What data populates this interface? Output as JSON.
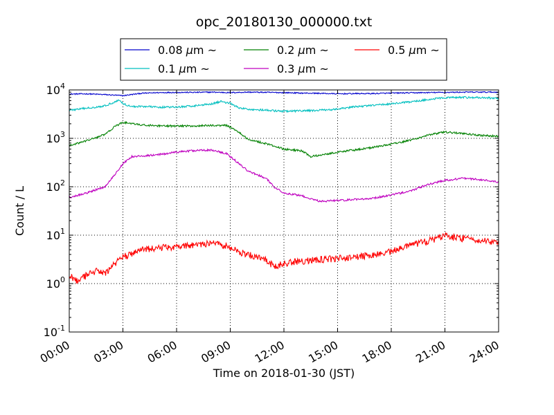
{
  "chart_data": {
    "type": "line",
    "title": "opc_20180130_000000.txt",
    "xlabel": "Time on 2018-01-30 (JST)",
    "ylabel": "Count / L",
    "yscale": "log",
    "xlim": [
      0,
      24
    ],
    "ylim": [
      0.1,
      10000
    ],
    "grid": true,
    "legend_position": "top",
    "x_ticks": [
      0,
      3,
      6,
      9,
      12,
      15,
      18,
      21,
      24
    ],
    "x_tick_labels": [
      "00:00",
      "03:00",
      "06:00",
      "09:00",
      "12:00",
      "15:00",
      "18:00",
      "21:00",
      "24:00"
    ],
    "y_ticks": [
      {
        "value": 0.1,
        "base": "10",
        "exp": "-1"
      },
      {
        "value": 1,
        "base": "10",
        "exp": "0"
      },
      {
        "value": 10,
        "base": "10",
        "exp": "1"
      },
      {
        "value": 100,
        "base": "10",
        "exp": "2"
      },
      {
        "value": 1000,
        "base": "10",
        "exp": "3"
      },
      {
        "value": 10000,
        "base": "10",
        "exp": "4"
      }
    ],
    "series": [
      {
        "name": "0.08 μm ~",
        "legend_prefix": "0.08 ",
        "legend_mu": "μ",
        "legend_suffix": "m  ~",
        "color": "#0000cc",
        "noise": 0.012,
        "x": [
          0,
          1,
          2,
          3,
          4,
          5,
          6,
          7,
          8,
          9,
          10,
          11,
          12,
          13,
          14,
          15,
          16,
          17,
          18,
          19,
          20,
          21,
          22,
          23,
          24
        ],
        "y": [
          8200,
          8300,
          8000,
          7600,
          8500,
          8800,
          8900,
          8900,
          9000,
          8800,
          9000,
          8900,
          8800,
          8600,
          8500,
          8300,
          8400,
          8400,
          8600,
          8700,
          8800,
          8900,
          9000,
          9000,
          9000
        ]
      },
      {
        "name": "0.1 μm ~",
        "legend_prefix": "0.1 ",
        "legend_mu": "μ",
        "legend_suffix": "m  ~",
        "color": "#00bfbf",
        "noise": 0.02,
        "x": [
          0,
          1,
          2,
          2.8,
          3,
          3.5,
          4,
          5,
          6,
          7,
          8,
          8.5,
          9,
          9.5,
          10,
          11,
          12,
          13,
          14,
          15,
          16,
          17,
          18,
          19,
          20,
          21,
          22,
          23,
          24
        ],
        "y": [
          3800,
          4200,
          4700,
          6200,
          5200,
          4500,
          4600,
          4400,
          4400,
          4700,
          5200,
          5800,
          5300,
          4200,
          4000,
          3800,
          3600,
          3700,
          3800,
          4000,
          4500,
          4800,
          5200,
          5600,
          6300,
          6900,
          7000,
          6900,
          6700
        ]
      },
      {
        "name": "0.2 μm ~",
        "legend_prefix": "0.2 ",
        "legend_mu": "μ",
        "legend_suffix": "m  ~",
        "color": "#008000",
        "noise": 0.02,
        "x": [
          0,
          1,
          2,
          2.5,
          3,
          3.5,
          4,
          5,
          6,
          7,
          8,
          8.8,
          9.3,
          10,
          11,
          12,
          13,
          13.5,
          14,
          15,
          16,
          17,
          18,
          19,
          20,
          21,
          22,
          23,
          24
        ],
        "y": [
          700,
          900,
          1200,
          1700,
          2150,
          2000,
          1900,
          1800,
          1800,
          1800,
          1850,
          1850,
          1500,
          950,
          780,
          600,
          550,
          420,
          450,
          520,
          580,
          650,
          760,
          900,
          1150,
          1350,
          1250,
          1150,
          1100
        ]
      },
      {
        "name": "0.3 μm ~",
        "legend_prefix": "0.3 ",
        "legend_mu": "μ",
        "legend_suffix": "m  ~",
        "color": "#bf00bf",
        "noise": 0.02,
        "x": [
          0,
          1,
          2,
          2.5,
          3,
          3.5,
          4,
          5,
          6,
          7,
          8,
          8.8,
          9.5,
          10,
          11,
          11.5,
          12,
          13,
          14,
          15,
          16,
          17,
          18,
          19,
          20,
          21,
          22,
          23,
          24
        ],
        "y": [
          60,
          75,
          100,
          170,
          300,
          420,
          430,
          460,
          520,
          560,
          570,
          480,
          300,
          210,
          150,
          95,
          75,
          65,
          50,
          52,
          55,
          58,
          68,
          80,
          110,
          135,
          150,
          140,
          125
        ]
      },
      {
        "name": "0.5 μm ~",
        "legend_prefix": "0.5 ",
        "legend_mu": "μ",
        "legend_suffix": "m  ~",
        "color": "#ff0000",
        "noise": 0.07,
        "x": [
          0,
          0.5,
          1,
          1.5,
          2,
          2.5,
          3,
          4,
          5,
          6,
          7,
          8,
          8.8,
          9.5,
          10,
          11,
          11.5,
          12,
          13,
          14,
          15,
          16,
          17,
          18,
          19,
          20,
          21,
          22,
          23,
          24
        ],
        "y": [
          1.5,
          1.1,
          1.5,
          1.8,
          1.6,
          2.5,
          3.5,
          5.0,
          5.5,
          5.8,
          6.3,
          6.8,
          6.0,
          4.5,
          4.0,
          3.0,
          2.2,
          2.6,
          2.9,
          3.1,
          3.3,
          3.5,
          3.9,
          4.6,
          6.0,
          7.5,
          9.5,
          8.5,
          7.8,
          7.2
        ]
      }
    ]
  }
}
